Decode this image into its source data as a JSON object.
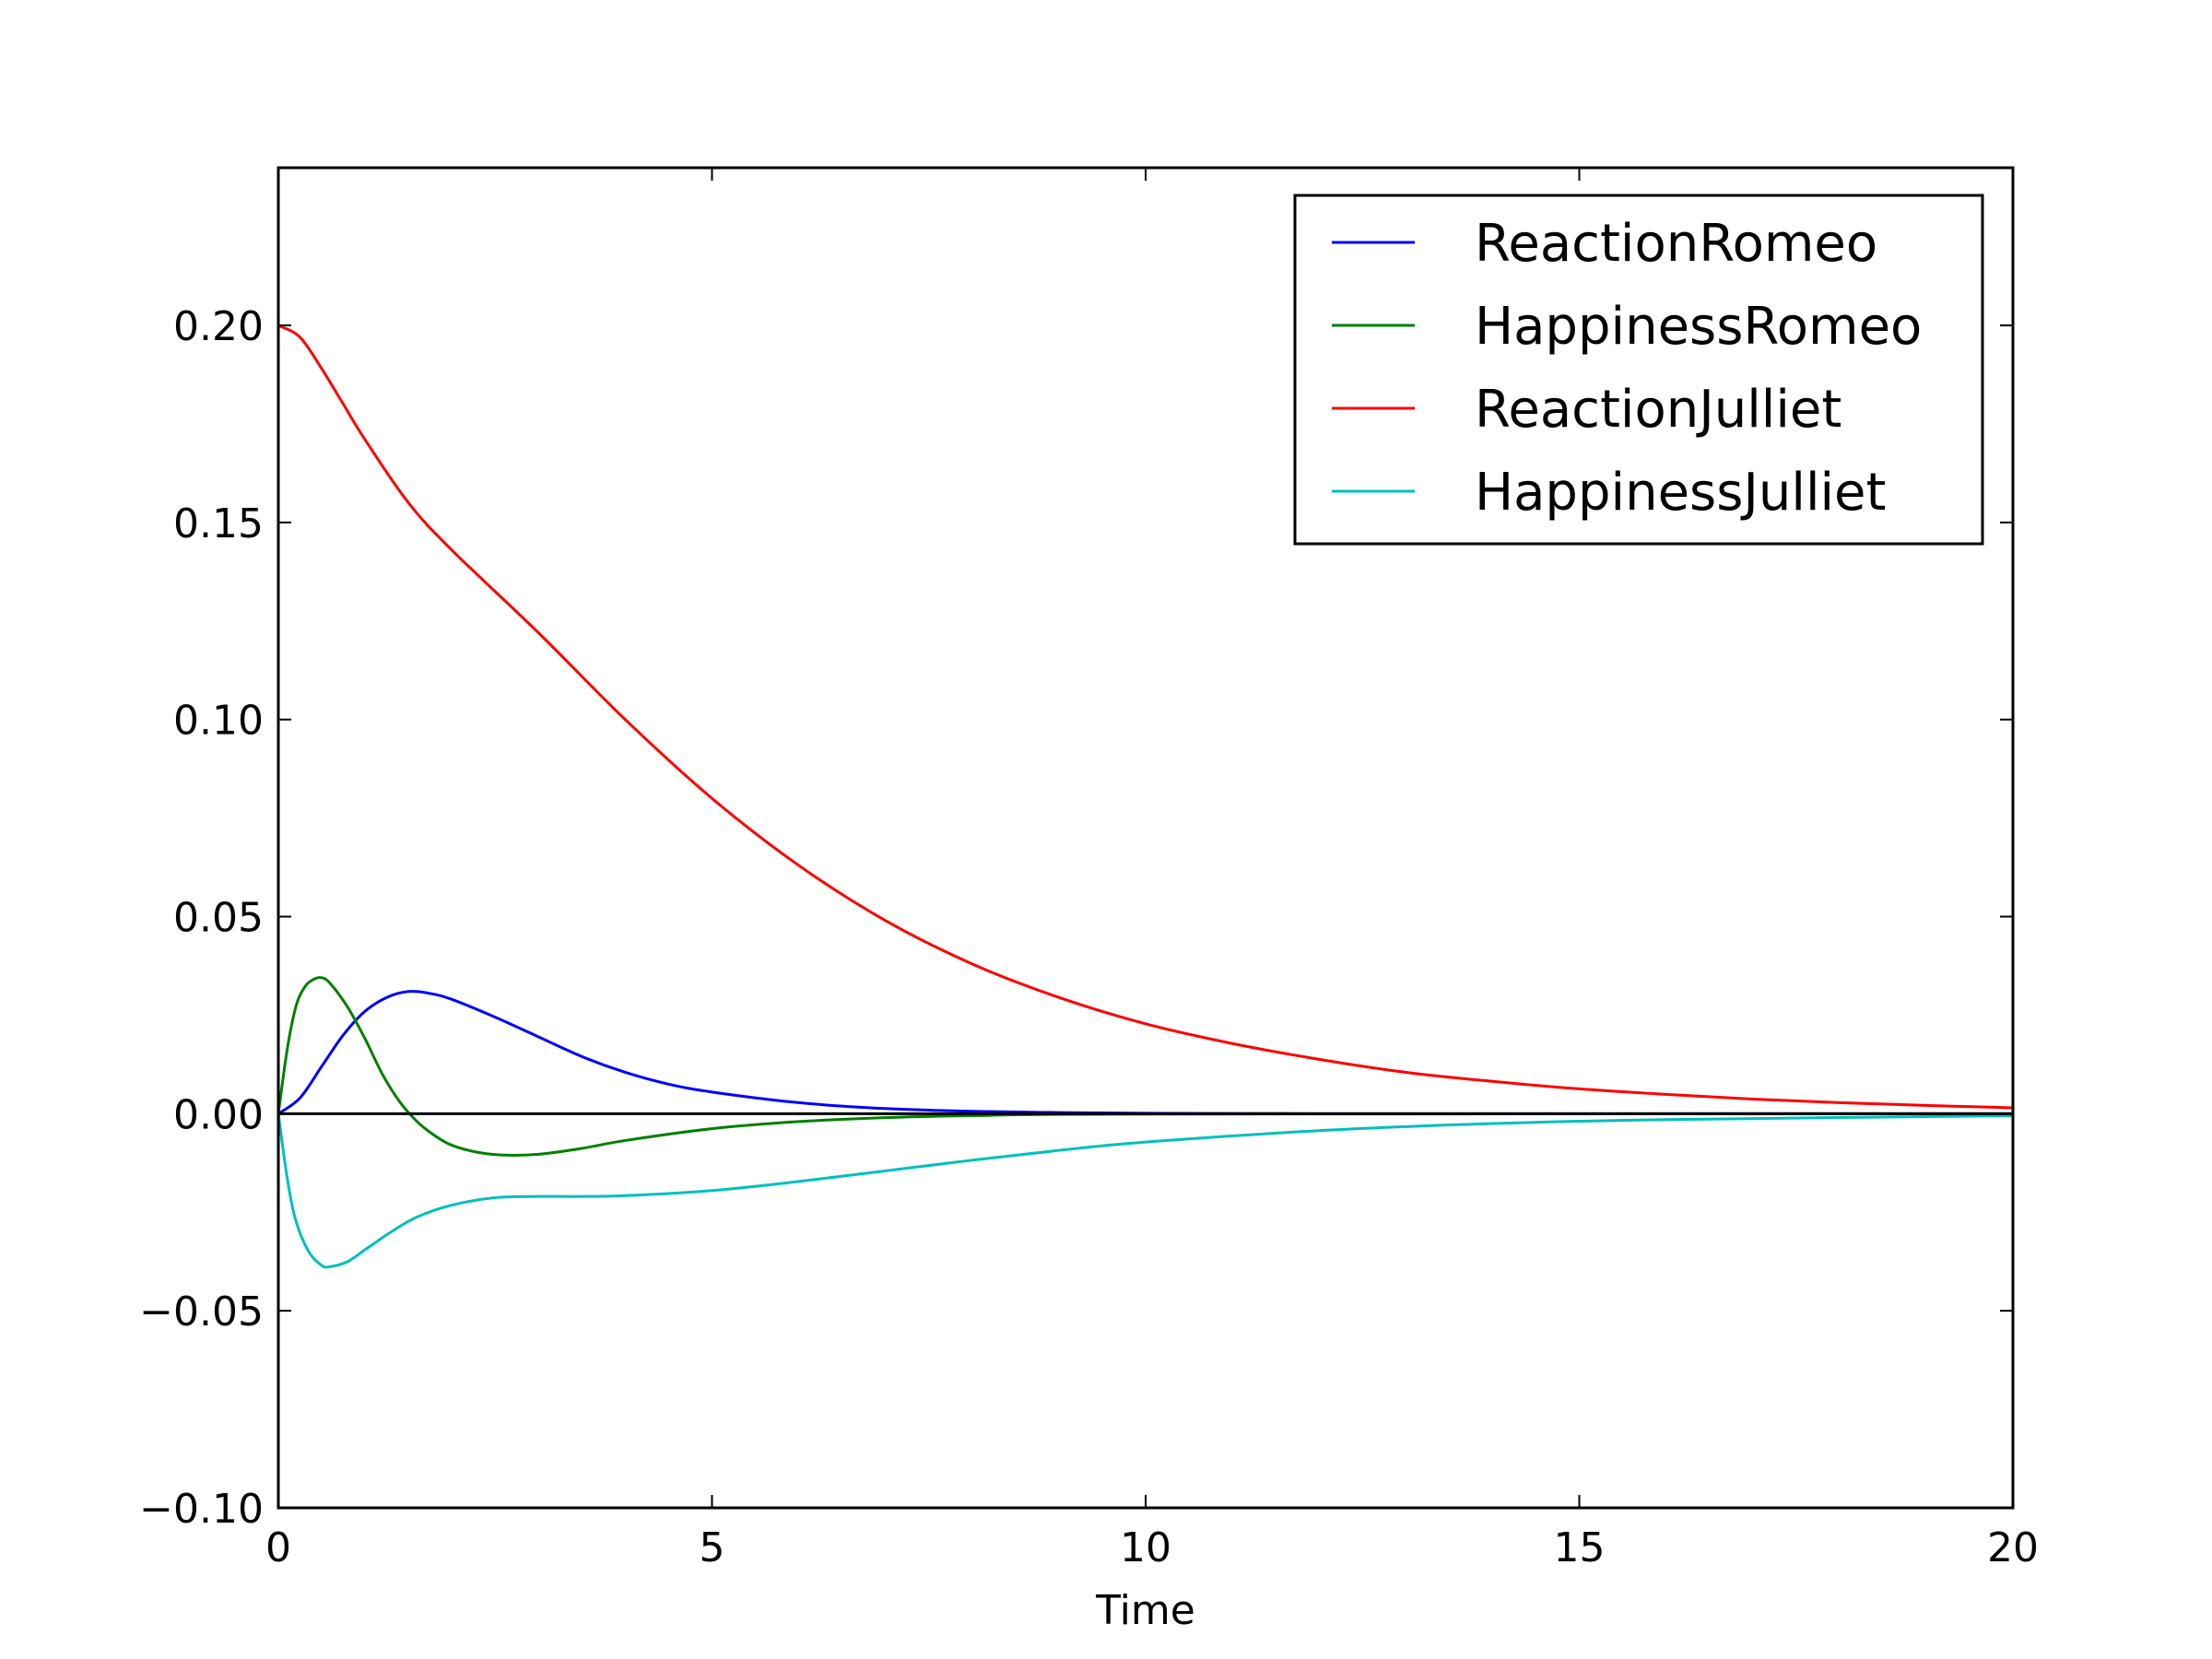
{
  "chart_data": {
    "type": "line",
    "title": "",
    "xlabel": "Time",
    "ylabel": "",
    "xlim": [
      0,
      20
    ],
    "ylim": [
      -0.1,
      0.24
    ],
    "xticks": [
      0,
      5,
      10,
      15,
      20
    ],
    "xtick_labels": [
      "0",
      "5",
      "10",
      "15",
      "20"
    ],
    "yticks": [
      -0.1,
      -0.05,
      0.0,
      0.05,
      0.1,
      0.15,
      0.2
    ],
    "ytick_labels": [
      "−0.10",
      "−0.05",
      "0.00",
      "0.05",
      "0.10",
      "0.15",
      "0.20"
    ],
    "grid": false,
    "legend_position": "top-right",
    "zero_line": true,
    "series": [
      {
        "name": "ReactionRomeo",
        "color": "#0000ff",
        "x": [
          0,
          0.25,
          0.5,
          0.75,
          1.0,
          1.25,
          1.5,
          1.75,
          2.0,
          2.5,
          3.0,
          3.5,
          4.0,
          4.5,
          5.0,
          6.0,
          7.0,
          8.0,
          9.0,
          10.0,
          12.0,
          14.0,
          16.0,
          18.0,
          20.0
        ],
        "y": [
          0.0,
          0.004,
          0.012,
          0.02,
          0.026,
          0.0295,
          0.031,
          0.0305,
          0.029,
          0.0245,
          0.0195,
          0.0145,
          0.0105,
          0.0075,
          0.0055,
          0.0028,
          0.0013,
          0.0006,
          0.0003,
          0.0001,
          0.0,
          0.0,
          0.0,
          0.0,
          0.0
        ]
      },
      {
        "name": "HappinessRomeo",
        "color": "#008000",
        "x": [
          0,
          0.1,
          0.2,
          0.3,
          0.4,
          0.5,
          0.6,
          0.8,
          1.0,
          1.2,
          1.4,
          1.6,
          1.8,
          2.0,
          2.3,
          2.6,
          3.0,
          3.5,
          4.0,
          5.0,
          6.0,
          7.0,
          8.0,
          10.0,
          20.0
        ],
        "y": [
          0.0,
          0.016,
          0.027,
          0.032,
          0.034,
          0.0345,
          0.033,
          0.027,
          0.019,
          0.01,
          0.003,
          -0.002,
          -0.0055,
          -0.008,
          -0.0098,
          -0.0105,
          -0.0103,
          -0.0088,
          -0.0068,
          -0.0038,
          -0.002,
          -0.001,
          -0.0005,
          -0.0001,
          0.0
        ]
      },
      {
        "name": "ReactionJulliet",
        "color": "#ff0000",
        "x": [
          0,
          0.25,
          0.5,
          0.75,
          1.0,
          1.5,
          2.0,
          3.0,
          4.0,
          5.0,
          6.0,
          7.0,
          8.0,
          9.0,
          10.0,
          11.0,
          12.0,
          13.0,
          14.0,
          15.0,
          16.0,
          17.0,
          18.0,
          19.0,
          20.0
        ],
        "y": [
          0.2,
          0.197,
          0.189,
          0.18,
          0.171,
          0.155,
          0.143,
          0.122,
          0.1,
          0.08,
          0.063,
          0.049,
          0.038,
          0.0295,
          0.0228,
          0.0178,
          0.0138,
          0.0105,
          0.0082,
          0.0063,
          0.0049,
          0.0037,
          0.0028,
          0.0021,
          0.0015
        ]
      },
      {
        "name": "HappinessJulliet",
        "color": "#00bfbf",
        "x": [
          0,
          0.1,
          0.2,
          0.35,
          0.5,
          0.6,
          0.8,
          1.0,
          1.3,
          1.6,
          2.0,
          2.5,
          3.0,
          3.5,
          4.0,
          5.0,
          6.0,
          7.0,
          8.0,
          9.0,
          10.0,
          12.0,
          14.0,
          16.0,
          20.0
        ],
        "y": [
          0.0,
          -0.016,
          -0.027,
          -0.035,
          -0.0385,
          -0.0388,
          -0.0375,
          -0.0345,
          -0.03,
          -0.0262,
          -0.0232,
          -0.0213,
          -0.021,
          -0.021,
          -0.0208,
          -0.0195,
          -0.0172,
          -0.0145,
          -0.0118,
          -0.0093,
          -0.0072,
          -0.0043,
          -0.0025,
          -0.0015,
          -0.0005
        ]
      }
    ]
  }
}
